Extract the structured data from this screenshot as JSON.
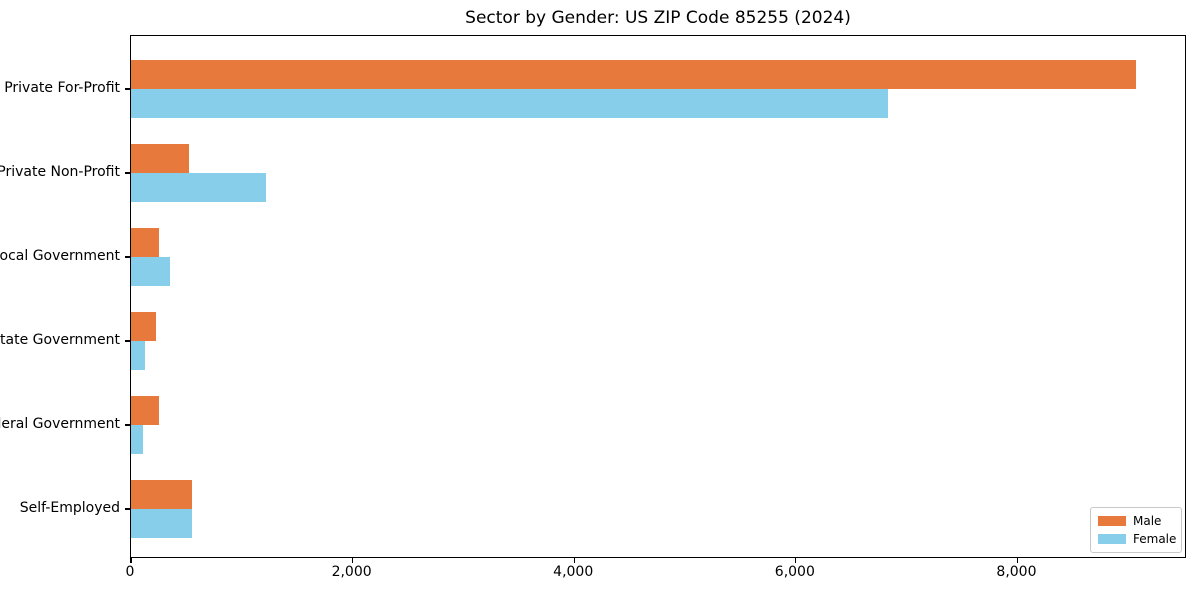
{
  "chart_data": {
    "type": "bar",
    "orientation": "horizontal",
    "title": "Sector by Gender: US ZIP Code 85255 (2024)",
    "categories": [
      "Private For-Profit",
      "Private Non-Profit",
      "Local Government",
      "State Government",
      "Federal Government",
      "Self-Employed"
    ],
    "series": [
      {
        "name": "Male",
        "color": "#e8793c",
        "values": [
          9070,
          520,
          250,
          230,
          250,
          550
        ]
      },
      {
        "name": "Female",
        "color": "#87ceeb",
        "values": [
          6830,
          1220,
          355,
          130,
          110,
          555
        ]
      }
    ],
    "xlabel": "",
    "ylabel": "",
    "xlim": [
      0,
      9530
    ],
    "x_ticks": [
      0,
      2000,
      4000,
      6000,
      8000
    ],
    "x_tick_labels": [
      "0",
      "2,000",
      "4,000",
      "6,000",
      "8,000"
    ],
    "grid": false,
    "legend_position": "lower right"
  },
  "colors": {
    "axis": "#000000",
    "background": "#ffffff",
    "legend_border": "#c9c9c9"
  }
}
